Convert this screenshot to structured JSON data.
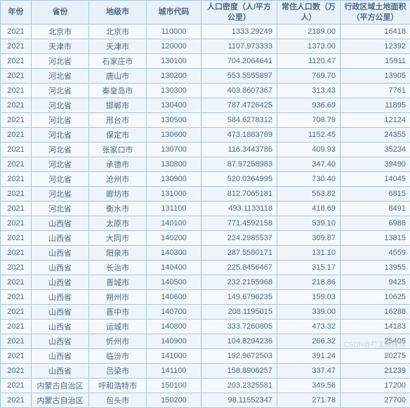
{
  "columns": [
    {
      "key": "year",
      "label": "年份",
      "class": "c0",
      "align": ""
    },
    {
      "key": "province",
      "label": "省份",
      "class": "c1",
      "align": ""
    },
    {
      "key": "city",
      "label": "地级市",
      "class": "c2",
      "align": ""
    },
    {
      "key": "code",
      "label": "城市代码",
      "class": "c3",
      "align": ""
    },
    {
      "key": "density",
      "label": "人口密度（人/平方公里）",
      "class": "c4",
      "align": "num"
    },
    {
      "key": "population",
      "label": "常住人口数（万人）",
      "class": "c5",
      "align": "num"
    },
    {
      "key": "area",
      "label": "行政区域土地面积（平方公里）",
      "class": "c6",
      "align": "num"
    }
  ],
  "rows": [
    {
      "year": "2021",
      "province": "北京市",
      "city": "北京市",
      "code": "110000",
      "density": "1333.29249",
      "population": "2189.00",
      "area": "16418"
    },
    {
      "year": "2021",
      "province": "天津市",
      "city": "天津市",
      "code": "120000",
      "density": "1107.973333",
      "population": "1373.00",
      "area": "12392"
    },
    {
      "year": "2021",
      "province": "河北省",
      "city": "石家庄市",
      "code": "130100",
      "density": "704.2064641",
      "population": "1120.47",
      "area": "15911"
    },
    {
      "year": "2021",
      "province": "河北省",
      "city": "唐山市",
      "code": "130200",
      "density": "553.5555897",
      "population": "769.70",
      "area": "13905"
    },
    {
      "year": "2021",
      "province": "河北省",
      "city": "秦皇岛市",
      "code": "130300",
      "density": "403.8607367",
      "population": "313.43",
      "area": "7761"
    },
    {
      "year": "2021",
      "province": "河北省",
      "city": "邯郸市",
      "code": "130400",
      "density": "787.4726425",
      "population": "936.69",
      "area": "11895"
    },
    {
      "year": "2021",
      "province": "河北省",
      "city": "邢台市",
      "code": "130500",
      "density": "584.6278312",
      "population": "708.79",
      "area": "12124"
    },
    {
      "year": "2021",
      "province": "河北省",
      "city": "保定市",
      "code": "130600",
      "density": "473.1883769",
      "population": "1152.45",
      "area": "24355"
    },
    {
      "year": "2021",
      "province": "河北省",
      "city": "张家口市",
      "code": "130700",
      "density": "116.3443786",
      "population": "409.93",
      "area": "35234"
    },
    {
      "year": "2021",
      "province": "河北省",
      "city": "承德市",
      "code": "130800",
      "density": "87.97258983",
      "population": "347.40",
      "area": "39490"
    },
    {
      "year": "2021",
      "province": "河北省",
      "city": "沧州市",
      "code": "130900",
      "density": "520.0364995",
      "population": "730.40",
      "area": "14045"
    },
    {
      "year": "2021",
      "province": "河北省",
      "city": "廊坊市",
      "code": "131000",
      "density": "812.7065181",
      "population": "553.82",
      "area": "6815"
    },
    {
      "year": "2021",
      "province": "河北省",
      "city": "衡水市",
      "code": "131100",
      "density": "493.1133118",
      "population": "418.69",
      "area": "8491"
    },
    {
      "year": "2021",
      "province": "山西省",
      "city": "太原市",
      "code": "140100",
      "density": "771.4592158",
      "population": "539.10",
      "area": "6988"
    },
    {
      "year": "2021",
      "province": "山西省",
      "city": "大同市",
      "code": "140200",
      "density": "224.2985537",
      "population": "309.87",
      "area": "13815"
    },
    {
      "year": "2021",
      "province": "山西省",
      "city": "阳泉市",
      "code": "140300",
      "density": "287.5580171",
      "population": "131.10",
      "area": "4559"
    },
    {
      "year": "2021",
      "province": "山西省",
      "city": "长治市",
      "code": "140400",
      "density": "225.8456467",
      "population": "315.17",
      "area": "13955"
    },
    {
      "year": "2021",
      "province": "山西省",
      "city": "晋城市",
      "code": "140500",
      "density": "232.2155968",
      "population": "218.86",
      "area": "9425"
    },
    {
      "year": "2021",
      "province": "山西省",
      "city": "朔州市",
      "code": "140600",
      "density": "149.6796235",
      "population": "159.03",
      "area": "10625"
    },
    {
      "year": "2021",
      "province": "山西省",
      "city": "晋中市",
      "code": "140700",
      "density": "208.1195015",
      "population": "339.00",
      "area": "16288"
    },
    {
      "year": "2021",
      "province": "山西省",
      "city": "运城市",
      "code": "140800",
      "density": "333.7260805",
      "population": "473.32",
      "area": "14183"
    },
    {
      "year": "2021",
      "province": "山西省",
      "city": "忻州市",
      "code": "140900",
      "density": "104.8294236",
      "population": "266.32",
      "area": "25405"
    },
    {
      "year": "2021",
      "province": "山西省",
      "city": "临汾市",
      "code": "141000",
      "density": "192.9672503",
      "population": "391.24",
      "area": "20275"
    },
    {
      "year": "2021",
      "province": "山西省",
      "city": "吕梁市",
      "code": "141100",
      "density": "158.8906257",
      "population": "337.47",
      "area": "21239"
    },
    {
      "year": "2021",
      "province": "内蒙古自治区",
      "city": "呼和浩特市",
      "code": "150100",
      "density": "203.2325581",
      "population": "349.56",
      "area": "17200"
    },
    {
      "year": "2021",
      "province": "内蒙古自治区",
      "city": "包头市",
      "code": "150200",
      "density": "98.11552347",
      "population": "271.78",
      "area": "27700"
    }
  ],
  "watermark": "CSDN@打工搬砖族",
  "theme": {
    "border_color": "#a8c6df",
    "header_bg": "#e8f1f8",
    "row_bg": "#f5f9fc",
    "row_alt_bg": "#eef5fa",
    "text_color": "#4a6a8a",
    "header_fontsize": 11,
    "cell_fontsize": 11
  }
}
